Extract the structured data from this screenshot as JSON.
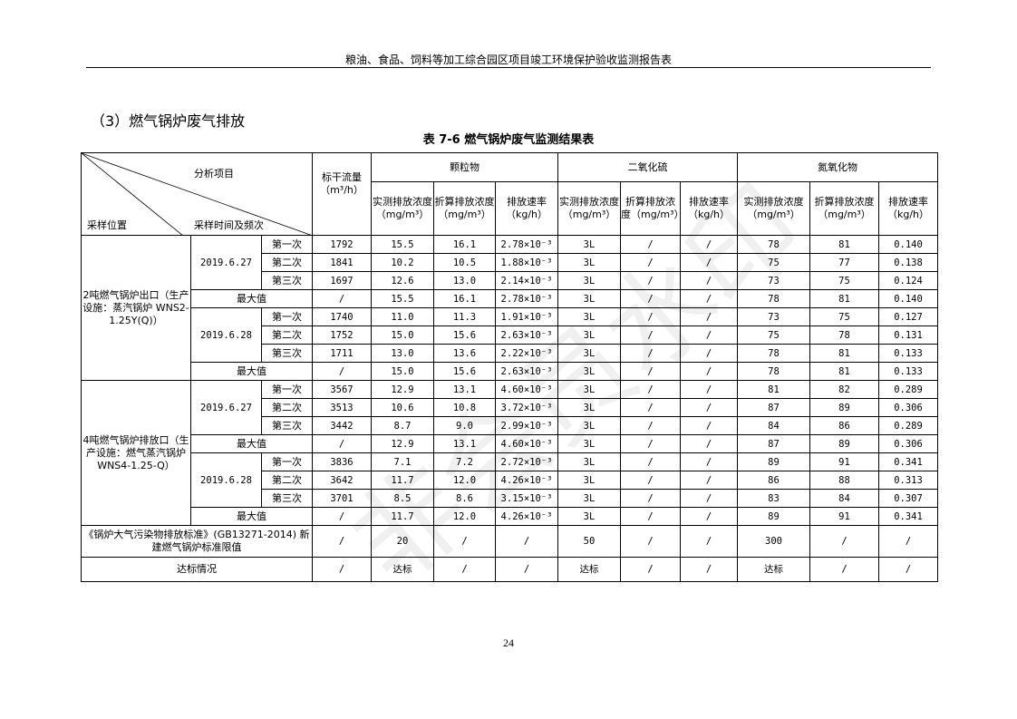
{
  "header": {
    "title": "粮油、食品、饲料等加工综合园区项目竣工环境保护验收监测报告表"
  },
  "section_title": "（3）燃气锅炉废气排放",
  "table_caption": "表 7-6   燃气锅炉废气监测结果表",
  "watermark": "非会员水印",
  "table": {
    "corner": {
      "top": "分析项目",
      "bottom_left": "采样位置",
      "bottom_mid": "采样时间及频次"
    },
    "flow_header": "标干流量（m³/h）",
    "groups": [
      "颗粒物",
      "二氧化硫",
      "氮氧化物"
    ],
    "subheaders": [
      "实测排放浓度（mg/m³）",
      "折算排放浓度（mg/m³）",
      "排放速率（kg/h）",
      "实测排放浓度（mg/m³）",
      "折算排放浓度（mg/m³）",
      "排放速率（kg/h）",
      "实测排放浓度（mg/m³）",
      "折算排放浓度（mg/m³）",
      "排放速率（kg/h）"
    ],
    "max_label": "最大值",
    "sites": [
      {
        "name": "2吨燃气锅炉出口（生产设施：蒸汽锅炉 WNS2-1.25Y(Q)）",
        "days": [
          {
            "date": "2019.6.27",
            "rows": [
              {
                "run": "第一次",
                "values": [
                  "1792",
                  "15.5",
                  "16.1",
                  "2.78×10⁻³",
                  "3L",
                  "/",
                  "/",
                  "78",
                  "81",
                  "0.140"
                ]
              },
              {
                "run": "第二次",
                "values": [
                  "1841",
                  "10.2",
                  "10.5",
                  "1.88×10⁻³",
                  "3L",
                  "/",
                  "/",
                  "75",
                  "77",
                  "0.138"
                ]
              },
              {
                "run": "第三次",
                "values": [
                  "1697",
                  "12.6",
                  "13.0",
                  "2.14×10⁻³",
                  "3L",
                  "/",
                  "/",
                  "73",
                  "75",
                  "0.124"
                ]
              }
            ],
            "max": [
              "/",
              "15.5",
              "16.1",
              "2.78×10⁻³",
              "3L",
              "/",
              "/",
              "78",
              "81",
              "0.140"
            ]
          },
          {
            "date": "2019.6.28",
            "rows": [
              {
                "run": "第一次",
                "values": [
                  "1740",
                  "11.0",
                  "11.3",
                  "1.91×10⁻³",
                  "3L",
                  "/",
                  "/",
                  "73",
                  "75",
                  "0.127"
                ]
              },
              {
                "run": "第二次",
                "values": [
                  "1752",
                  "15.0",
                  "15.6",
                  "2.63×10⁻³",
                  "3L",
                  "/",
                  "/",
                  "75",
                  "78",
                  "0.131"
                ]
              },
              {
                "run": "第三次",
                "values": [
                  "1711",
                  "13.0",
                  "13.6",
                  "2.22×10⁻³",
                  "3L",
                  "/",
                  "/",
                  "78",
                  "81",
                  "0.133"
                ]
              }
            ],
            "max": [
              "/",
              "15.0",
              "15.6",
              "2.63×10⁻³",
              "3L",
              "/",
              "/",
              "78",
              "81",
              "0.133"
            ]
          }
        ]
      },
      {
        "name": "4吨燃气锅炉排放口（生产设施：燃气蒸汽锅炉 WNS4-1.25-Q）",
        "days": [
          {
            "date": "2019.6.27",
            "rows": [
              {
                "run": "第一次",
                "values": [
                  "3567",
                  "12.9",
                  "13.1",
                  "4.60×10⁻³",
                  "3L",
                  "/",
                  "/",
                  "81",
                  "82",
                  "0.289"
                ]
              },
              {
                "run": "第二次",
                "values": [
                  "3513",
                  "10.6",
                  "10.8",
                  "3.72×10⁻³",
                  "3L",
                  "/",
                  "/",
                  "87",
                  "89",
                  "0.306"
                ]
              },
              {
                "run": "第三次",
                "values": [
                  "3442",
                  "8.7",
                  "9.0",
                  "2.99×10⁻³",
                  "3L",
                  "/",
                  "/",
                  "84",
                  "86",
                  "0.289"
                ]
              }
            ],
            "max": [
              "/",
              "12.9",
              "13.1",
              "4.60×10⁻³",
              "3L",
              "/",
              "/",
              "87",
              "89",
              "0.306"
            ]
          },
          {
            "date": "2019.6.28",
            "rows": [
              {
                "run": "第一次",
                "values": [
                  "3836",
                  "7.1",
                  "7.2",
                  "2.72×10⁻³",
                  "3L",
                  "/",
                  "/",
                  "89",
                  "91",
                  "0.341"
                ]
              },
              {
                "run": "第二次",
                "values": [
                  "3642",
                  "11.7",
                  "12.0",
                  "4.26×10⁻³",
                  "3L",
                  "/",
                  "/",
                  "86",
                  "88",
                  "0.313"
                ]
              },
              {
                "run": "第三次",
                "values": [
                  "3701",
                  "8.5",
                  "8.6",
                  "3.15×10⁻³",
                  "3L",
                  "/",
                  "/",
                  "83",
                  "84",
                  "0.307"
                ]
              }
            ],
            "max": [
              "/",
              "11.7",
              "12.0",
              "4.26×10⁻³",
              "3L",
              "/",
              "/",
              "89",
              "91",
              "0.341"
            ]
          }
        ]
      }
    ],
    "standard": {
      "label": "《锅炉大气污染物排放标准》(GB13271-2014) 新建燃气锅炉标准限值",
      "values": [
        "/",
        "20",
        "/",
        "/",
        "50",
        "/",
        "/",
        "300",
        "/",
        "/"
      ]
    },
    "compliance": {
      "label": "达标情况",
      "values": [
        "/",
        "达标",
        "/",
        "/",
        "达标",
        "/",
        "/",
        "达标",
        "/",
        "/"
      ]
    }
  },
  "page_number": "24"
}
